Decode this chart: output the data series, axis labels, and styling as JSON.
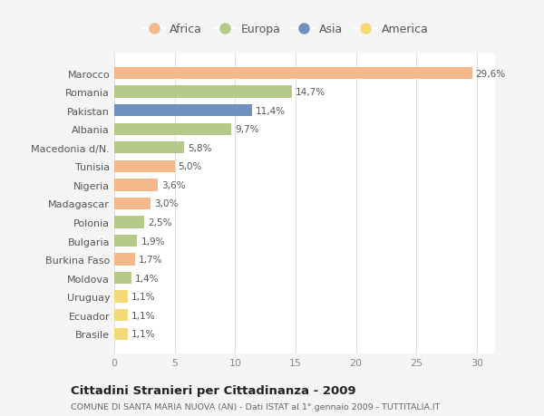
{
  "countries": [
    "Marocco",
    "Romania",
    "Pakistan",
    "Albania",
    "Macedonia d/N.",
    "Tunisia",
    "Nigeria",
    "Madagascar",
    "Polonia",
    "Bulgaria",
    "Burkina Faso",
    "Moldova",
    "Uruguay",
    "Ecuador",
    "Brasile"
  ],
  "values": [
    29.6,
    14.7,
    11.4,
    9.7,
    5.8,
    5.0,
    3.6,
    3.0,
    2.5,
    1.9,
    1.7,
    1.4,
    1.1,
    1.1,
    1.1
  ],
  "labels": [
    "29,6%",
    "14,7%",
    "11,4%",
    "9,7%",
    "5,8%",
    "5,0%",
    "3,6%",
    "3,0%",
    "2,5%",
    "1,9%",
    "1,7%",
    "1,4%",
    "1,1%",
    "1,1%",
    "1,1%"
  ],
  "continents": [
    "Africa",
    "Europa",
    "Asia",
    "Europa",
    "Europa",
    "Africa",
    "Africa",
    "Africa",
    "Europa",
    "Europa",
    "Africa",
    "Europa",
    "America",
    "America",
    "America"
  ],
  "colors": {
    "Africa": "#F5B88A",
    "Europa": "#B5C98A",
    "Asia": "#7090C0",
    "America": "#F5D878"
  },
  "legend_order": [
    "Africa",
    "Europa",
    "Asia",
    "America"
  ],
  "title": "Cittadini Stranieri per Cittadinanza - 2009",
  "subtitle": "COMUNE DI SANTA MARIA NUOVA (AN) - Dati ISTAT al 1° gennaio 2009 - TUTTITALIA.IT",
  "xlim": [
    0,
    31.5
  ],
  "xticks": [
    0,
    5,
    10,
    15,
    20,
    25,
    30
  ],
  "background_color": "#f5f5f5",
  "plot_bg_color": "#ffffff",
  "grid_color": "#e0e0e0",
  "bar_height": 0.65
}
